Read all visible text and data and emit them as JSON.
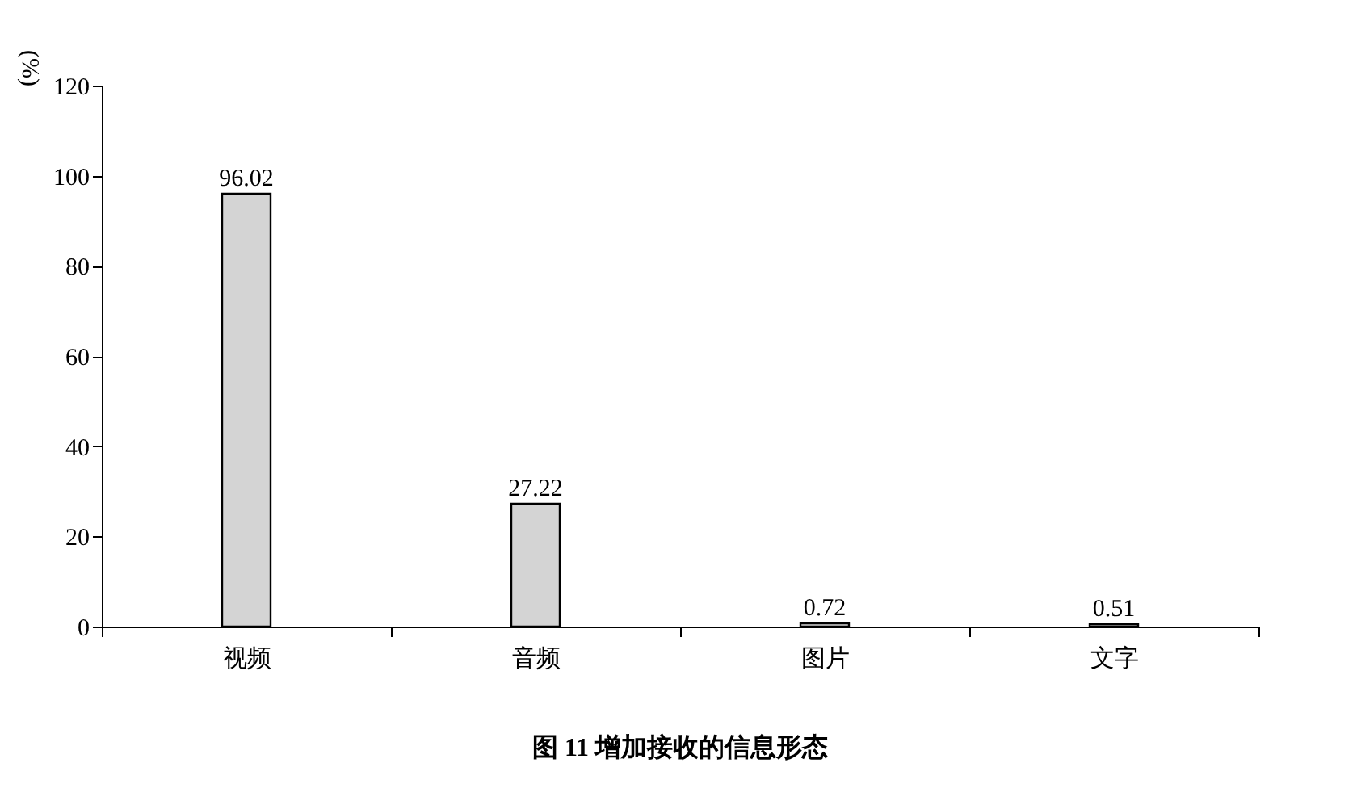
{
  "chart_data": {
    "type": "bar",
    "title": "图 11    增加接收的信息形态",
    "ylabel": "(%)",
    "categories": [
      "视频",
      "音频",
      "图片",
      "文字"
    ],
    "values": [
      96.02,
      27.22,
      0.72,
      0.51
    ],
    "color": "#d4d4d4",
    "ylim": [
      0,
      120
    ],
    "yticks": [
      0,
      20,
      40,
      60,
      80,
      100,
      120
    ],
    "grid": false,
    "data_labels": true
  }
}
